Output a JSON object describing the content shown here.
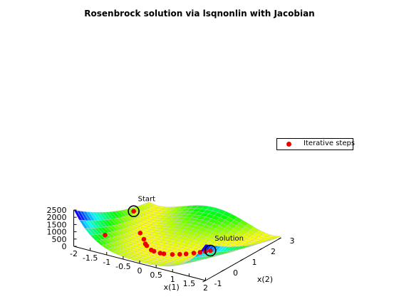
{
  "chart_data": {
    "type": "surface",
    "title": "Rosenbrock solution via lsqnonlin with Jacobian",
    "xlabel": "x(1)",
    "ylabel": "x(2)",
    "zlabel": "",
    "xlim": [
      -2,
      2
    ],
    "ylim": [
      -1,
      3
    ],
    "zlim": [
      0,
      2500
    ],
    "x_ticks": [
      "-2",
      "-1.5",
      "-1",
      "-0.5",
      "0",
      "0.5",
      "1",
      "1.5",
      "2"
    ],
    "y_ticks": [
      "-1",
      "0",
      "1",
      "2",
      "3"
    ],
    "z_ticks": [
      "0",
      "500",
      "1000",
      "1500",
      "2000",
      "2500"
    ],
    "legend_position": "top-right",
    "series": [
      {
        "name": "Iterative steps",
        "color": "#ee0000",
        "points": [
          {
            "x": -1.9,
            "y": 2.0
          },
          {
            "x": -1.45,
            "y": -0.3
          },
          {
            "x": -1.1,
            "y": 0.95
          },
          {
            "x": -0.8,
            "y": 0.62
          },
          {
            "x": -0.6,
            "y": 0.35
          },
          {
            "x": -0.5,
            "y": 0.25
          },
          {
            "x": -0.25,
            "y": 0.05
          },
          {
            "x": -0.15,
            "y": 0.02
          },
          {
            "x": 0.05,
            "y": 0.0
          },
          {
            "x": 0.15,
            "y": 0.02
          },
          {
            "x": 0.35,
            "y": 0.12
          },
          {
            "x": 0.5,
            "y": 0.25
          },
          {
            "x": 0.62,
            "y": 0.38
          },
          {
            "x": 0.75,
            "y": 0.56
          },
          {
            "x": 0.85,
            "y": 0.72
          },
          {
            "x": 0.93,
            "y": 0.86
          },
          {
            "x": 1.0,
            "y": 1.0
          }
        ]
      }
    ],
    "annotations": [
      {
        "text": "Start",
        "x": -1.9,
        "y": 2.0
      },
      {
        "text": "Solution",
        "x": 1.0,
        "y": 1.0
      }
    ],
    "colormap": "hsv"
  }
}
